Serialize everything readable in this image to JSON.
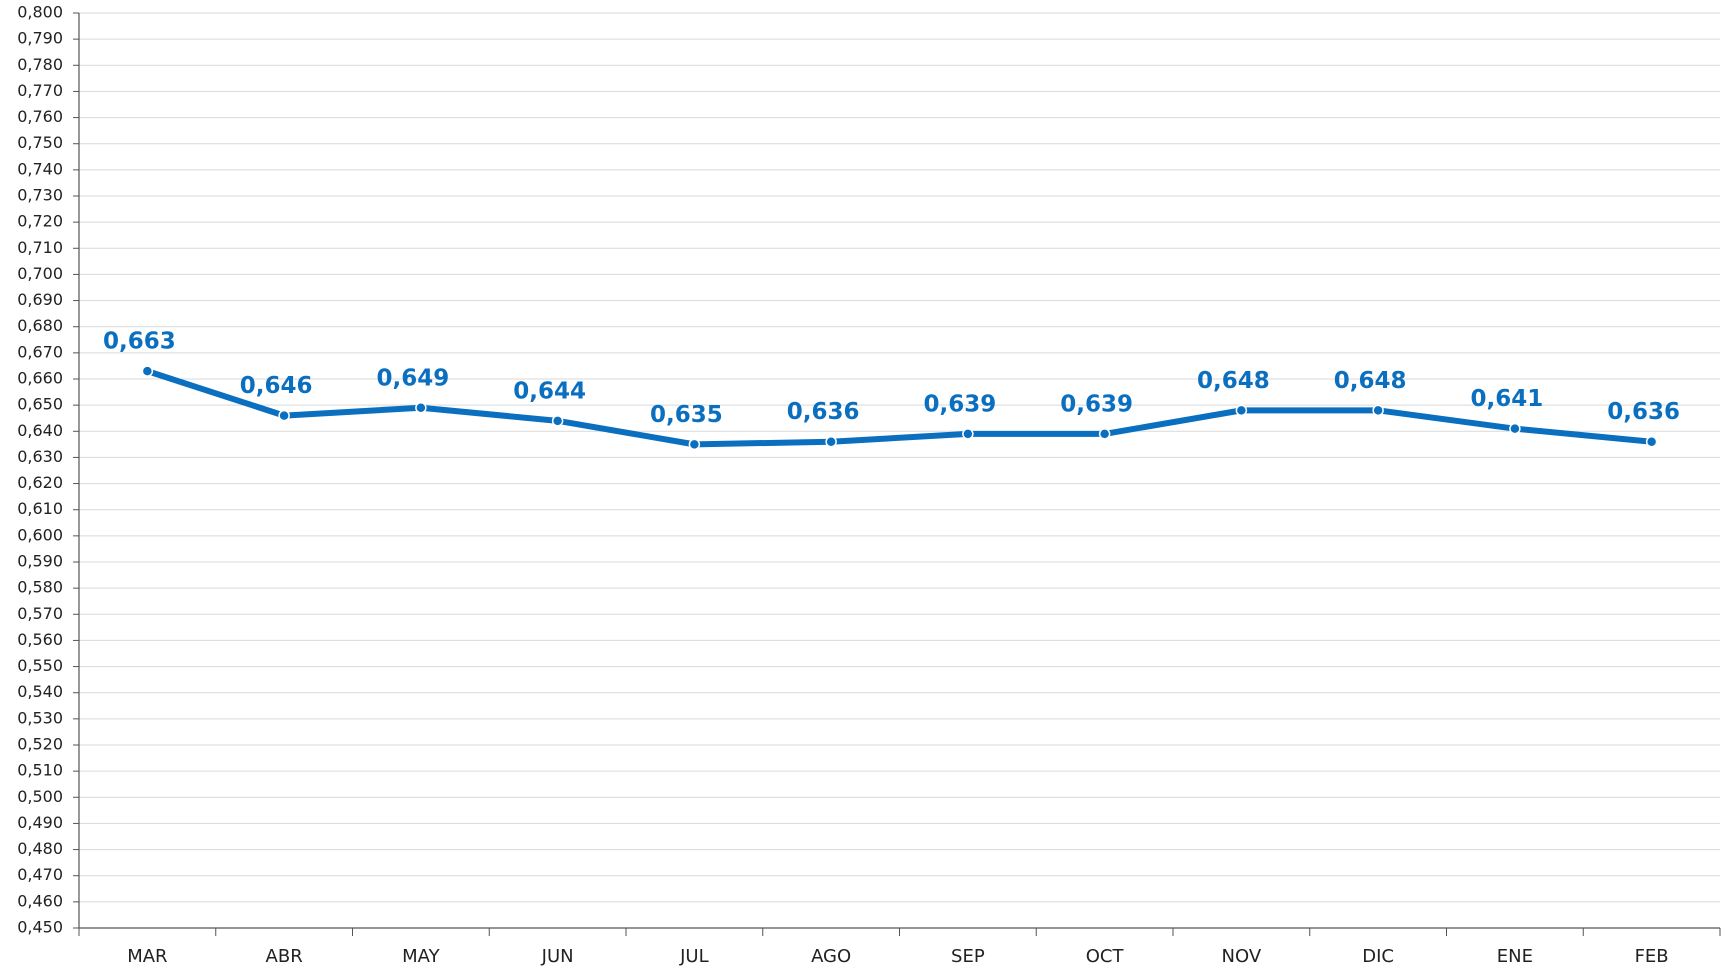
{
  "chart_data": {
    "type": "line",
    "categories": [
      "MAR",
      "ABR",
      "MAY",
      "JUN",
      "JUL",
      "AGO",
      "SEP",
      "OCT",
      "NOV",
      "DIC",
      "ENE",
      "FEB"
    ],
    "series": [
      {
        "color": "#0b6fc0",
        "values": [
          0.663,
          0.646,
          0.649,
          0.644,
          0.635,
          0.636,
          0.639,
          0.639,
          0.648,
          0.648,
          0.641,
          0.636
        ],
        "value_labels": [
          "0,663",
          "0,646",
          "0,649",
          "0,644",
          "0,635",
          "0,636",
          "0,639",
          "0,639",
          "0,648",
          "0,648",
          "0,641",
          "0,636"
        ]
      }
    ],
    "ylim": [
      0.45,
      0.8
    ],
    "yticks": [
      {
        "value": 0.45,
        "label": "0,450"
      },
      {
        "value": 0.46,
        "label": "0,460"
      },
      {
        "value": 0.47,
        "label": "0,470"
      },
      {
        "value": 0.48,
        "label": "0,480"
      },
      {
        "value": 0.49,
        "label": "0,490"
      },
      {
        "value": 0.5,
        "label": "0,500"
      },
      {
        "value": 0.51,
        "label": "0,510"
      },
      {
        "value": 0.52,
        "label": "0,520"
      },
      {
        "value": 0.53,
        "label": "0,530"
      },
      {
        "value": 0.54,
        "label": "0,540"
      },
      {
        "value": 0.55,
        "label": "0,550"
      },
      {
        "value": 0.56,
        "label": "0,560"
      },
      {
        "value": 0.57,
        "label": "0,570"
      },
      {
        "value": 0.58,
        "label": "0,580"
      },
      {
        "value": 0.59,
        "label": "0,590"
      },
      {
        "value": 0.6,
        "label": "0,600"
      },
      {
        "value": 0.61,
        "label": "0,610"
      },
      {
        "value": 0.62,
        "label": "0,620"
      },
      {
        "value": 0.63,
        "label": "0,630"
      },
      {
        "value": 0.64,
        "label": "0,640"
      },
      {
        "value": 0.65,
        "label": "0,650"
      },
      {
        "value": 0.66,
        "label": "0,660"
      },
      {
        "value": 0.67,
        "label": "0,670"
      },
      {
        "value": 0.68,
        "label": "0,680"
      },
      {
        "value": 0.69,
        "label": "0,690"
      },
      {
        "value": 0.7,
        "label": "0,700"
      },
      {
        "value": 0.71,
        "label": "0,710"
      },
      {
        "value": 0.72,
        "label": "0,720"
      },
      {
        "value": 0.73,
        "label": "0,730"
      },
      {
        "value": 0.74,
        "label": "0,740"
      },
      {
        "value": 0.75,
        "label": "0,750"
      },
      {
        "value": 0.76,
        "label": "0,760"
      },
      {
        "value": 0.77,
        "label": "0,770"
      },
      {
        "value": 0.78,
        "label": "0,780"
      },
      {
        "value": 0.79,
        "label": "0,790"
      },
      {
        "value": 0.8,
        "label": "0,800"
      }
    ],
    "grid": true
  }
}
